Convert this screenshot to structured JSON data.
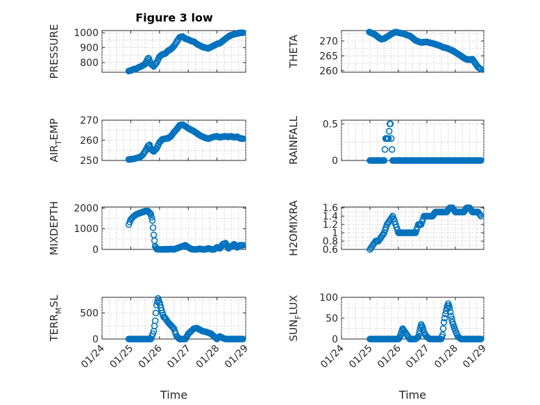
{
  "figure_title": "Figure 3 low",
  "chart_data": [
    {
      "type": "scatter",
      "id": "pressure",
      "title": "Figure 3 low",
      "ylabel": "PRESSURE",
      "ylabel_sub": "",
      "ylabel_tail": "",
      "xlabel": "",
      "ylim": [
        735,
        1015
      ],
      "yticks": [
        800,
        900,
        1000
      ],
      "ytick_labels": [
        "800",
        "900",
        "1000"
      ],
      "xticks": [
        "01/24",
        "01/25",
        "01/26",
        "01/27",
        "01/28",
        "01/29"
      ],
      "show_xtick_labels": false,
      "x": [
        24.93,
        25.0,
        25.1,
        25.2,
        25.3,
        25.4,
        25.5,
        25.55,
        25.58,
        25.62,
        25.7,
        25.8,
        25.9,
        26.0,
        26.1,
        26.2,
        26.3,
        26.4,
        26.5,
        26.6,
        26.7,
        26.8,
        26.9,
        27.0,
        27.1,
        27.2,
        27.3,
        27.4,
        27.5,
        27.6,
        27.7,
        27.8,
        27.9,
        28.0,
        28.1,
        28.2,
        28.3,
        28.4,
        28.5,
        28.6,
        28.7,
        28.8,
        28.9
      ],
      "values": [
        743,
        747,
        755,
        760,
        770,
        778,
        790,
        808,
        822,
        830,
        790,
        775,
        800,
        840,
        855,
        860,
        880,
        890,
        910,
        940,
        970,
        975,
        960,
        955,
        945,
        940,
        925,
        915,
        905,
        900,
        895,
        905,
        915,
        925,
        930,
        945,
        960,
        975,
        985,
        990,
        995,
        1000,
        1000
      ]
    },
    {
      "type": "scatter",
      "id": "theta",
      "ylabel": "THETA",
      "ylabel_sub": "",
      "ylabel_tail": "",
      "xlabel": "",
      "ylim": [
        259.5,
        273.5
      ],
      "yticks": [
        260,
        265,
        270
      ],
      "ytick_labels": [
        "260",
        "265",
        "270"
      ],
      "xticks": [
        "01/24",
        "01/25",
        "01/26",
        "01/27",
        "01/28",
        "01/29"
      ],
      "show_xtick_labels": false,
      "x": [
        24.98,
        25.1,
        25.2,
        25.3,
        25.4,
        25.5,
        25.6,
        25.7,
        25.8,
        25.9,
        26.0,
        26.1,
        26.2,
        26.3,
        26.4,
        26.5,
        26.6,
        26.7,
        26.8,
        26.9,
        27.0,
        27.1,
        27.2,
        27.3,
        27.4,
        27.5,
        27.6,
        27.7,
        27.8,
        27.9,
        28.0,
        28.1,
        28.2,
        28.3,
        28.4,
        28.5,
        28.6,
        28.7,
        28.8,
        28.9
      ],
      "values": [
        273,
        272.5,
        272,
        271.2,
        270.6,
        270.8,
        271.4,
        272,
        272.6,
        273,
        272.8,
        272.6,
        272.4,
        272,
        271.7,
        271,
        270.2,
        269.8,
        269.5,
        269.6,
        269.7,
        269.4,
        269.2,
        268.9,
        268.6,
        268.2,
        267.8,
        267.6,
        267.2,
        266.8,
        266.2,
        265.6,
        265,
        264.3,
        263.8,
        263.7,
        263.9,
        262.5,
        261.2,
        260.5
      ]
    },
    {
      "type": "scatter",
      "id": "air_temp",
      "ylabel": "AIR",
      "ylabel_sub": "T",
      "ylabel_tail": "EMP",
      "xlabel": "",
      "ylim": [
        250,
        270
      ],
      "yticks": [
        250,
        260,
        270
      ],
      "ytick_labels": [
        "250",
        "260",
        "270"
      ],
      "xticks": [
        "01/24",
        "01/25",
        "01/26",
        "01/27",
        "01/28",
        "01/29"
      ],
      "show_xtick_labels": false,
      "x": [
        24.93,
        25.0,
        25.1,
        25.2,
        25.3,
        25.4,
        25.5,
        25.6,
        25.65,
        25.7,
        25.8,
        25.9,
        26.0,
        26.1,
        26.2,
        26.3,
        26.4,
        26.5,
        26.6,
        26.7,
        26.8,
        26.9,
        27.0,
        27.1,
        27.2,
        27.3,
        27.4,
        27.5,
        27.6,
        27.7,
        27.8,
        27.9,
        28.0,
        28.1,
        28.2,
        28.3,
        28.4,
        28.5,
        28.6,
        28.7,
        28.8,
        28.9
      ],
      "values": [
        250.5,
        250.6,
        250.8,
        251.2,
        251.5,
        252.5,
        254.5,
        257.2,
        257.8,
        255.5,
        254.5,
        256,
        259,
        260.5,
        260.8,
        261,
        262,
        264,
        265.5,
        267.5,
        267.8,
        267,
        266,
        265.2,
        264.5,
        263.5,
        262.5,
        261.8,
        261.2,
        260.8,
        261.3,
        261.8,
        262,
        261.5,
        261.8,
        262,
        261.7,
        262,
        261.5,
        261.8,
        261,
        260.8
      ]
    },
    {
      "type": "scatter",
      "id": "rainfall",
      "ylabel": "RAINFALL",
      "ylabel_sub": "",
      "ylabel_tail": "",
      "xlabel": "",
      "ylim": [
        0,
        0.55
      ],
      "yticks": [
        0,
        0.5
      ],
      "ytick_labels": [
        "0",
        "0.5"
      ],
      "xticks": [
        "01/24",
        "01/25",
        "01/26",
        "01/27",
        "01/28",
        "01/29"
      ],
      "show_xtick_labels": false,
      "x": [
        25.0,
        25.1,
        25.2,
        25.3,
        25.4,
        25.5,
        25.55,
        25.6,
        25.65,
        25.7,
        25.72,
        25.75,
        25.8,
        25.9,
        26.0,
        26.1,
        26.2,
        26.3,
        26.4,
        26.5,
        26.6,
        26.7,
        26.8,
        26.9,
        27.0,
        27.1,
        27.2,
        27.3,
        27.4,
        27.5,
        27.6,
        27.7,
        27.8,
        27.9,
        28.0,
        28.1,
        28.2,
        28.3,
        28.4,
        28.5,
        28.6,
        28.7,
        28.8,
        28.9
      ],
      "values": [
        0,
        0,
        0,
        0,
        0,
        0,
        0.3,
        0.3,
        0.3,
        0.5,
        0.5,
        0.3,
        0,
        0,
        0,
        0,
        0,
        0,
        0,
        0,
        0,
        0,
        0,
        0,
        0,
        0,
        0,
        0,
        0,
        0,
        0,
        0,
        0,
        0,
        0,
        0,
        0,
        0,
        0,
        0,
        0,
        0,
        0,
        0
      ]
    },
    {
      "type": "scatter",
      "id": "mixdepth",
      "ylabel": "MIXDEPTH",
      "ylabel_sub": "",
      "ylabel_tail": "",
      "xlabel": "",
      "ylim": [
        0,
        2050
      ],
      "yticks": [
        0,
        1000,
        2000
      ],
      "ytick_labels": [
        "0",
        "1000",
        "2000"
      ],
      "xticks": [
        "01/24",
        "01/25",
        "01/26",
        "01/27",
        "01/28",
        "01/29"
      ],
      "show_xtick_labels": false,
      "x": [
        24.93,
        25.0,
        25.1,
        25.2,
        25.3,
        25.4,
        25.5,
        25.6,
        25.7,
        25.75,
        25.8,
        25.85,
        25.9,
        26.0,
        26.1,
        26.2,
        26.3,
        26.4,
        26.5,
        26.6,
        26.7,
        26.8,
        26.9,
        27.0,
        27.1,
        27.2,
        27.3,
        27.4,
        27.5,
        27.6,
        27.7,
        27.8,
        27.9,
        28.0,
        28.1,
        28.2,
        28.3,
        28.4,
        28.5,
        28.6,
        28.7,
        28.8,
        28.9
      ],
      "values": [
        1200,
        1450,
        1600,
        1700,
        1750,
        1800,
        1850,
        1850,
        1700,
        1400,
        700,
        150,
        20,
        0,
        0,
        10,
        0,
        20,
        0,
        50,
        100,
        150,
        200,
        100,
        20,
        0,
        0,
        30,
        0,
        0,
        50,
        0,
        0,
        100,
        50,
        250,
        300,
        50,
        150,
        250,
        100,
        200,
        200
      ]
    },
    {
      "type": "scatter",
      "id": "h2omixra",
      "ylabel": "H2OMIXRA",
      "ylabel_sub": "",
      "ylabel_tail": "",
      "xlabel": "",
      "ylim": [
        0.6,
        1.62
      ],
      "yticks": [
        0.6,
        0.8,
        1,
        1.2,
        1.4,
        1.6
      ],
      "ytick_labels": [
        "0.6",
        "0.8",
        "1",
        "1.2",
        "1.4",
        "1.6"
      ],
      "xticks": [
        "01/24",
        "01/25",
        "01/26",
        "01/27",
        "01/28",
        "01/29"
      ],
      "show_xtick_labels": false,
      "x": [
        25.0,
        25.1,
        25.2,
        25.3,
        25.4,
        25.5,
        25.6,
        25.7,
        25.8,
        25.9,
        26.0,
        26.1,
        26.2,
        26.3,
        26.4,
        26.5,
        26.6,
        26.7,
        26.8,
        26.9,
        27.0,
        27.1,
        27.2,
        27.3,
        27.4,
        27.5,
        27.6,
        27.7,
        27.8,
        27.9,
        28.0,
        28.1,
        28.2,
        28.3,
        28.4,
        28.5,
        28.6,
        28.7,
        28.8,
        28.9
      ],
      "values": [
        0.6,
        0.7,
        0.8,
        0.8,
        0.9,
        1.0,
        1.2,
        1.3,
        1.4,
        1.2,
        1.0,
        1.0,
        1.0,
        1.0,
        1.0,
        1.0,
        1.0,
        1.2,
        1.2,
        1.4,
        1.4,
        1.4,
        1.4,
        1.5,
        1.5,
        1.5,
        1.5,
        1.5,
        1.6,
        1.6,
        1.5,
        1.5,
        1.5,
        1.5,
        1.6,
        1.6,
        1.5,
        1.5,
        1.5,
        1.4
      ]
    },
    {
      "type": "scatter",
      "id": "terr_msl",
      "ylabel": "TERR",
      "ylabel_sub": "M",
      "ylabel_tail": "SL",
      "xlabel": "Time",
      "ylim": [
        0,
        800
      ],
      "yticks": [
        0,
        500
      ],
      "ytick_labels": [
        "0",
        "500"
      ],
      "xticks": [
        "01/24",
        "01/25",
        "01/26",
        "01/27",
        "01/28",
        "01/29"
      ],
      "show_xtick_labels": true,
      "x": [
        24.93,
        25.0,
        25.1,
        25.2,
        25.3,
        25.4,
        25.5,
        25.6,
        25.7,
        25.8,
        25.85,
        25.9,
        25.95,
        26.0,
        26.05,
        26.1,
        26.15,
        26.2,
        26.3,
        26.4,
        26.5,
        26.6,
        26.7,
        26.8,
        26.9,
        27.0,
        27.1,
        27.2,
        27.3,
        27.4,
        27.5,
        27.6,
        27.7,
        27.8,
        27.9,
        28.0,
        28.1,
        28.2,
        28.3,
        28.4,
        28.5,
        28.6,
        28.7,
        28.8,
        28.9
      ],
      "values": [
        0,
        0,
        0,
        0,
        0,
        0,
        0,
        0,
        0,
        150,
        350,
        650,
        780,
        700,
        600,
        500,
        420,
        400,
        320,
        260,
        200,
        50,
        0,
        0,
        0,
        100,
        150,
        200,
        210,
        180,
        150,
        140,
        120,
        100,
        50,
        0,
        50,
        20,
        0,
        0,
        0,
        0,
        0,
        0,
        0
      ]
    },
    {
      "type": "scatter",
      "id": "sun_flux",
      "ylabel": "SUN",
      "ylabel_sub": "F",
      "ylabel_tail": "LUX",
      "xlabel": "Time",
      "ylim": [
        0,
        100
      ],
      "yticks": [
        0,
        50,
        100
      ],
      "ytick_labels": [
        "0",
        "50",
        "100"
      ],
      "xticks": [
        "01/24",
        "01/25",
        "01/26",
        "01/27",
        "01/28",
        "01/29"
      ],
      "show_xtick_labels": true,
      "x": [
        25.0,
        25.1,
        25.2,
        25.3,
        25.4,
        25.5,
        25.6,
        25.7,
        25.8,
        25.9,
        26.0,
        26.05,
        26.1,
        26.15,
        26.2,
        26.3,
        26.4,
        26.5,
        26.6,
        26.7,
        26.75,
        26.8,
        26.85,
        26.9,
        27.0,
        27.1,
        27.2,
        27.3,
        27.4,
        27.5,
        27.55,
        27.6,
        27.65,
        27.7,
        27.75,
        27.8,
        27.85,
        27.9,
        27.95,
        28.0,
        28.1,
        28.2,
        28.3,
        28.4,
        28.5,
        28.6,
        28.7,
        28.8,
        28.9
      ],
      "values": [
        0,
        0,
        0,
        0,
        0,
        0,
        0,
        0,
        0,
        0,
        0,
        5,
        15,
        25,
        20,
        10,
        0,
        0,
        0,
        5,
        20,
        35,
        28,
        15,
        5,
        0,
        0,
        0,
        0,
        0,
        10,
        40,
        60,
        75,
        85,
        75,
        55,
        40,
        30,
        20,
        5,
        0,
        0,
        0,
        0,
        0,
        0,
        0,
        0
      ]
    }
  ],
  "colors": {
    "marker": "#0072BD",
    "axis": "#262626",
    "grid": "#b8b8b8",
    "background": "#ffffff"
  }
}
